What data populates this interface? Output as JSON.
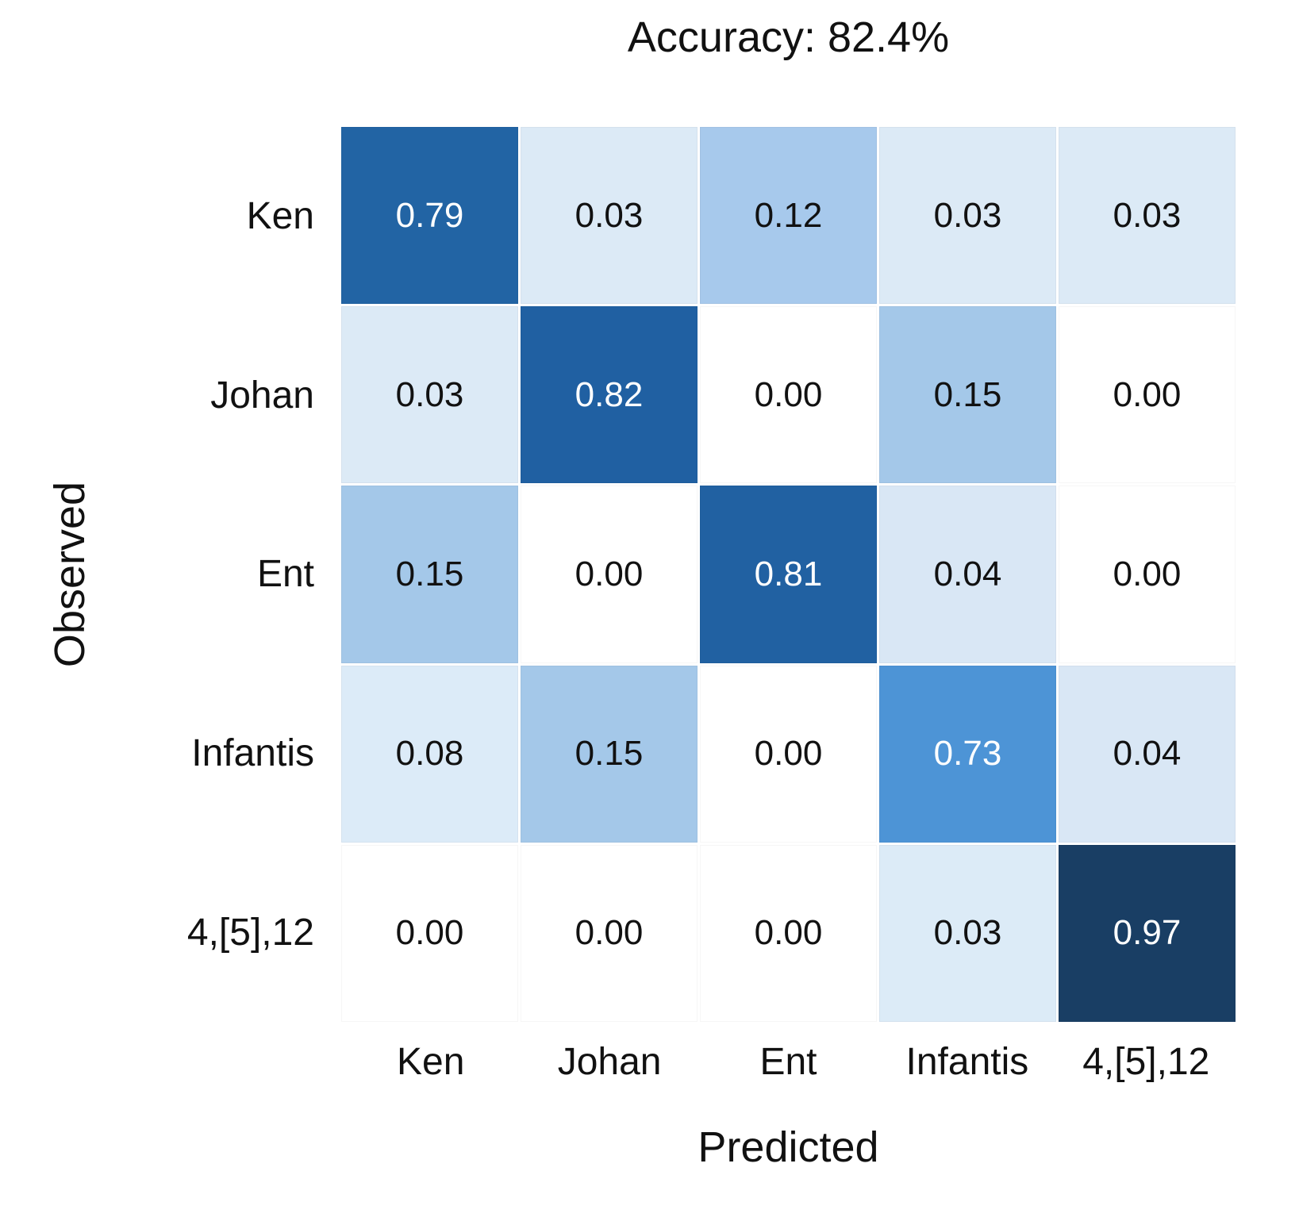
{
  "chart_data": {
    "type": "heatmap",
    "title": "Accuracy: 82.4%",
    "xlabel": "Predicted",
    "ylabel": "Observed",
    "row_categories": [
      "Ken",
      "Johan",
      "Ent",
      "Infantis",
      "4,[5],12"
    ],
    "col_categories": [
      "Ken",
      "Johan",
      "Ent",
      "Infantis",
      "4,[5],12"
    ],
    "matrix": [
      [
        0.79,
        0.03,
        0.12,
        0.03,
        0.03
      ],
      [
        0.03,
        0.82,
        0.0,
        0.15,
        0.0
      ],
      [
        0.15,
        0.0,
        0.81,
        0.04,
        0.0
      ],
      [
        0.08,
        0.15,
        0.0,
        0.73,
        0.04
      ],
      [
        0.0,
        0.0,
        0.0,
        0.03,
        0.97
      ]
    ],
    "value_format": "2-decimals",
    "value_range": [
      0,
      1
    ],
    "colormap": "Blues",
    "legend": "none",
    "grid": "white-gaps",
    "cell_colors": [
      [
        "#2264a4",
        "#dceaf6",
        "#a7c9ec",
        "#dceaf6",
        "#dceaf6"
      ],
      [
        "#dceaf6",
        "#2060a2",
        "#ffffff",
        "#a4c8e9",
        "#ffffff"
      ],
      [
        "#a4c8e9",
        "#ffffff",
        "#2161a2",
        "#d9e7f5",
        "#ffffff"
      ],
      [
        "#dcebf8",
        "#a4c8e9",
        "#ffffff",
        "#4d94d6",
        "#d9e7f5"
      ],
      [
        "#ffffff",
        "#ffffff",
        "#ffffff",
        "#dcebf7",
        "#193e64"
      ]
    ],
    "dark_cell_text_color": "#ffffff",
    "light_cell_text_color": "#111111"
  }
}
